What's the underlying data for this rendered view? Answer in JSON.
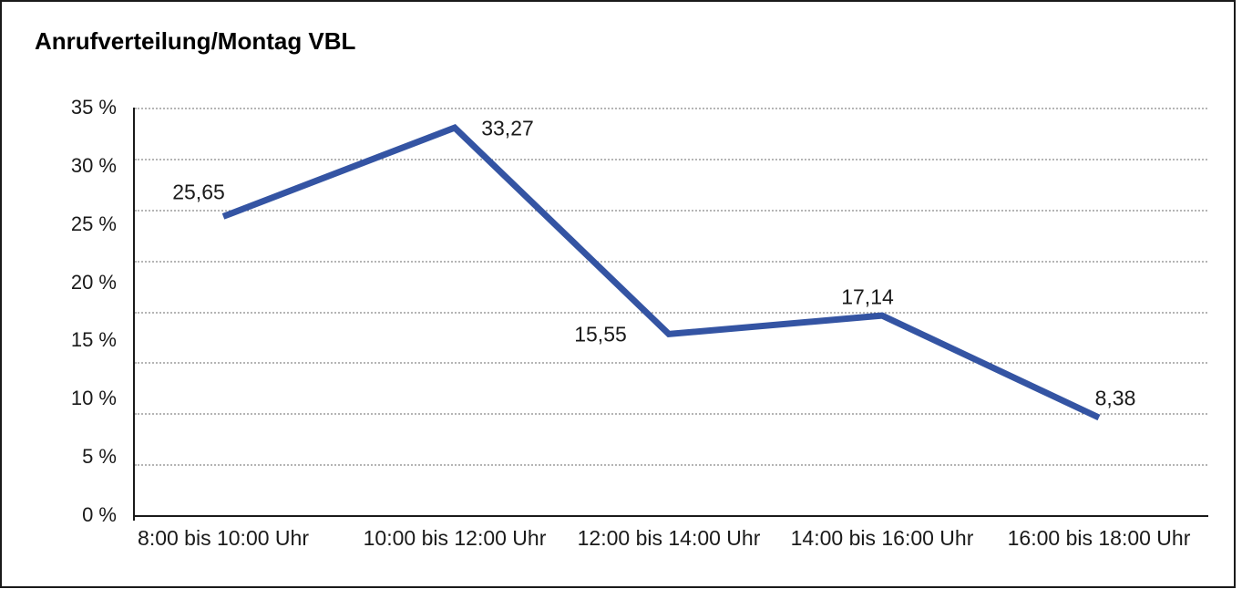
{
  "window": {
    "title": "Anrufverteilung/Montag VBL"
  },
  "chart_data": {
    "type": "line",
    "title": "Anrufverteilung/Montag VBL",
    "categories": [
      "8:00 bis 10:00 Uhr",
      "10:00 bis 12:00 Uhr",
      "12:00 bis 14:00 Uhr",
      "14:00 bis 16:00 Uhr",
      "16:00 bis 18:00 Uhr"
    ],
    "values": [
      25.65,
      33.27,
      15.55,
      17.14,
      8.38
    ],
    "value_labels": [
      "25,65",
      "33,27",
      "15,55",
      "17,14",
      "8,38"
    ],
    "xlabel": "",
    "ylabel": "",
    "y_tick_labels": [
      "35 %",
      "30 %",
      "25 %",
      "20 %",
      "15 %",
      "10 %",
      "5 %",
      "0 %"
    ],
    "y_tick_values": [
      35,
      30,
      25,
      20,
      15,
      10,
      5,
      0
    ],
    "ylim": [
      0,
      35
    ],
    "grid": "horizontal-dotted",
    "legend_position": "none",
    "line_color": "#3454A3",
    "text_color": "#1a1a1a"
  }
}
